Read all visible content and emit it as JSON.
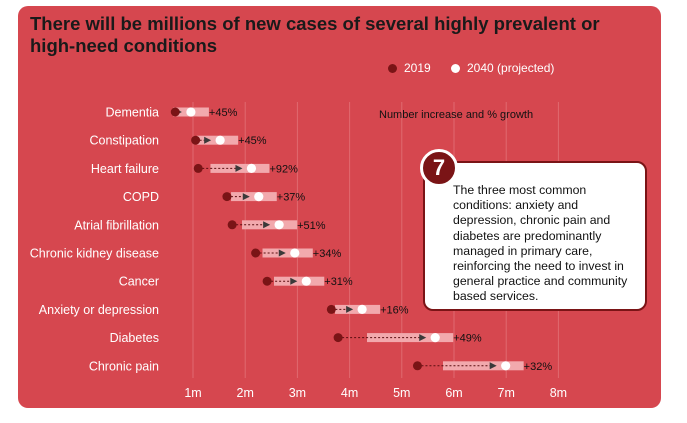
{
  "colors": {
    "background": "#d6474f",
    "marker_2019": "#7a1416",
    "marker_2040": "#ffffff",
    "bar": "#f2a9ad",
    "callout_border": "#7a1416"
  },
  "chart_data": {
    "type": "dumbbell",
    "title": "There will be millions of new cases of several highly prevalent or high-need conditions",
    "legend": {
      "series_2019": "2019",
      "series_2040": "2040 (projected)"
    },
    "axis_note": "Number increase and % growth",
    "x_ticks": [
      "1m",
      "2m",
      "3m",
      "4m",
      "5m",
      "6m",
      "7m",
      "8m"
    ],
    "xlim": [
      0.5,
      8.5
    ],
    "rows": [
      {
        "name": "Dementia",
        "v2019": 0.66,
        "v2040": 0.96,
        "growth": "+45%"
      },
      {
        "name": "Constipation",
        "v2019": 1.05,
        "v2040": 1.52,
        "growth": "+45%"
      },
      {
        "name": "Heart failure",
        "v2019": 1.1,
        "v2040": 2.12,
        "growth": "+92%"
      },
      {
        "name": "COPD",
        "v2019": 1.65,
        "v2040": 2.26,
        "growth": "+37%"
      },
      {
        "name": "Atrial fibrillation",
        "v2019": 1.75,
        "v2040": 2.65,
        "growth": "+51%"
      },
      {
        "name": "Chronic kidney disease",
        "v2019": 2.2,
        "v2040": 2.95,
        "growth": "+34%"
      },
      {
        "name": "Cancer",
        "v2019": 2.42,
        "v2040": 3.17,
        "growth": "+31%"
      },
      {
        "name": "Anxiety or depression",
        "v2019": 3.65,
        "v2040": 4.24,
        "growth": "+16%"
      },
      {
        "name": "Diabetes",
        "v2019": 3.78,
        "v2040": 5.64,
        "growth": "+49%"
      },
      {
        "name": "Chronic pain",
        "v2019": 5.3,
        "v2040": 6.99,
        "growth": "+32%"
      }
    ]
  },
  "callout": {
    "number": "7",
    "text": "The three most common conditions: anxiety and depression, chronic pain and diabetes are predominantly managed in primary care, reinforcing the need to invest in general practice and community based services."
  }
}
